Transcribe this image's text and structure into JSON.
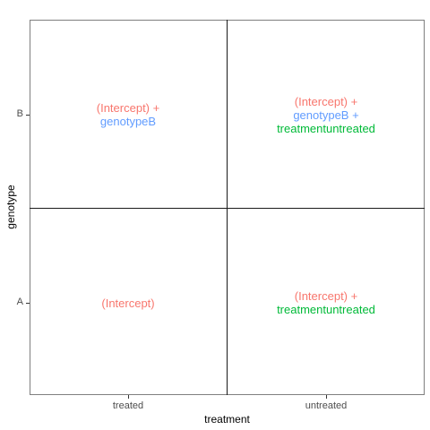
{
  "chart_data": {
    "type": "table",
    "xlabel": "treatment",
    "ylabel": "genotype",
    "x_categories": [
      "treated",
      "untreated"
    ],
    "y_categories": [
      "A",
      "B"
    ],
    "grid": false,
    "colors": {
      "intercept": "#F8766D",
      "genotypeB": "#619CFF",
      "treatmentuntreated": "#00BA38"
    },
    "cells": [
      {
        "x": "treated",
        "y": "B",
        "lines": [
          {
            "text": "(Intercept) +",
            "term": "intercept"
          },
          {
            "text": "genotypeB",
            "term": "genotypeB"
          }
        ]
      },
      {
        "x": "untreated",
        "y": "B",
        "lines": [
          {
            "text": "(Intercept) +",
            "term": "intercept"
          },
          {
            "text": "genotypeB +",
            "term": "genotypeB"
          },
          {
            "text": "treatmentuntreated",
            "term": "treatmentuntreated"
          }
        ]
      },
      {
        "x": "treated",
        "y": "A",
        "lines": [
          {
            "text": "(Intercept)",
            "term": "intercept"
          }
        ]
      },
      {
        "x": "untreated",
        "y": "A",
        "lines": [
          {
            "text": "(Intercept) +",
            "term": "intercept"
          },
          {
            "text": "treatmentuntreated",
            "term": "treatmentuntreated"
          }
        ]
      }
    ]
  }
}
